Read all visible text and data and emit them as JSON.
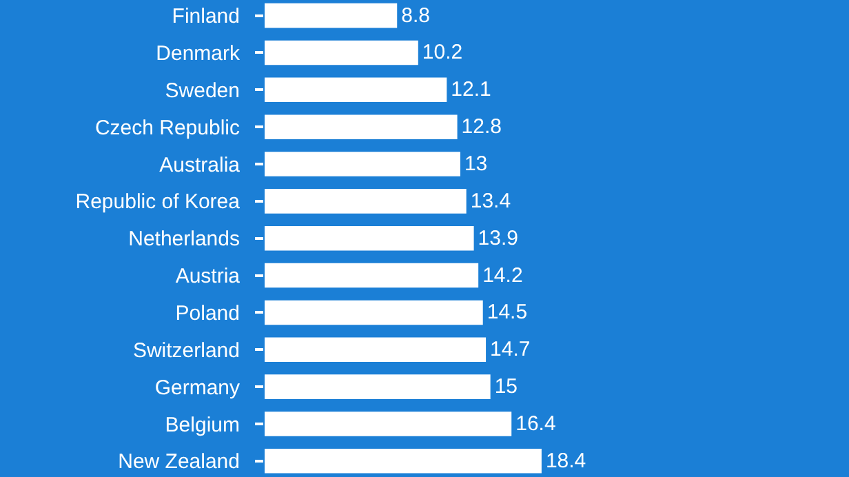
{
  "chart_data": {
    "type": "bar",
    "orientation": "horizontal",
    "categories": [
      "Finland",
      "Denmark",
      "Sweden",
      "Czech Republic",
      "Australia",
      "Republic of Korea",
      "Netherlands",
      "Austria",
      "Poland",
      "Switzerland",
      "Germany",
      "Belgium",
      "New Zealand"
    ],
    "values": [
      8.8,
      10.2,
      12.1,
      12.8,
      13,
      13.4,
      13.9,
      14.2,
      14.5,
      14.7,
      15,
      16.4,
      18.4
    ],
    "color": "#ffffff",
    "data_labels": true
  }
}
